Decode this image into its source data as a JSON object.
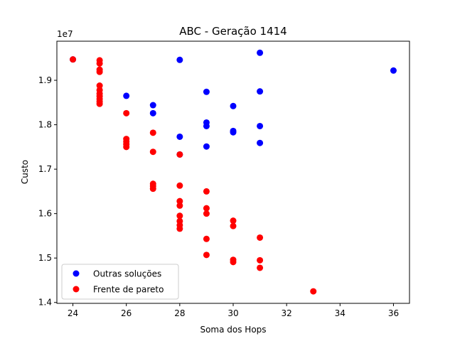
{
  "chart_data": {
    "type": "scatter",
    "title": "ABC - Geração 1414",
    "xlabel": "Soma dos Hops",
    "ylabel": "Custo",
    "y_offset_text": "1e7",
    "xlim": [
      23.4,
      36.6
    ],
    "ylim": [
      13980000,
      19880000
    ],
    "x_ticks": [
      24,
      26,
      28,
      30,
      32,
      34,
      36
    ],
    "y_ticks": [
      14000000,
      15000000,
      16000000,
      17000000,
      18000000,
      19000000
    ],
    "y_tick_labels": [
      "1.4",
      "1.5",
      "1.6",
      "1.7",
      "1.8",
      "1.9"
    ],
    "grid": false,
    "legend_position": "lower-left",
    "series": [
      {
        "name": "Outras soluções",
        "color": "#0000ff",
        "points": [
          [
            24,
            19470000
          ],
          [
            26,
            18650000
          ],
          [
            27,
            18440000
          ],
          [
            27,
            18260000
          ],
          [
            28,
            19460000
          ],
          [
            28,
            17730000
          ],
          [
            28,
            17330000
          ],
          [
            29,
            18740000
          ],
          [
            29,
            18050000
          ],
          [
            29,
            17970000
          ],
          [
            29,
            17510000
          ],
          [
            30,
            18420000
          ],
          [
            30,
            17860000
          ],
          [
            30,
            17830000
          ],
          [
            31,
            19620000
          ],
          [
            31,
            18750000
          ],
          [
            31,
            17970000
          ],
          [
            31,
            17590000
          ],
          [
            36,
            19220000
          ]
        ]
      },
      {
        "name": "Frente de pareto",
        "color": "#ff0000",
        "points": [
          [
            24,
            19470000
          ],
          [
            25,
            19450000
          ],
          [
            25,
            19380000
          ],
          [
            25,
            19240000
          ],
          [
            25,
            19190000
          ],
          [
            25,
            18880000
          ],
          [
            25,
            18780000
          ],
          [
            25,
            18700000
          ],
          [
            25,
            18640000
          ],
          [
            25,
            18580000
          ],
          [
            25,
            18520000
          ],
          [
            25,
            18470000
          ],
          [
            26,
            18260000
          ],
          [
            26,
            17680000
          ],
          [
            26,
            17620000
          ],
          [
            26,
            17560000
          ],
          [
            26,
            17500000
          ],
          [
            27,
            17820000
          ],
          [
            27,
            17390000
          ],
          [
            27,
            16670000
          ],
          [
            27,
            16620000
          ],
          [
            27,
            16560000
          ],
          [
            28,
            17330000
          ],
          [
            28,
            16630000
          ],
          [
            28,
            16280000
          ],
          [
            28,
            16180000
          ],
          [
            28,
            15950000
          ],
          [
            28,
            15830000
          ],
          [
            28,
            15740000
          ],
          [
            28,
            15660000
          ],
          [
            29,
            16500000
          ],
          [
            29,
            16120000
          ],
          [
            29,
            16000000
          ],
          [
            29,
            15430000
          ],
          [
            29,
            15070000
          ],
          [
            30,
            15840000
          ],
          [
            30,
            15720000
          ],
          [
            30,
            14960000
          ],
          [
            30,
            14910000
          ],
          [
            31,
            15460000
          ],
          [
            31,
            14950000
          ],
          [
            31,
            14780000
          ],
          [
            33,
            14250000
          ]
        ]
      }
    ]
  }
}
